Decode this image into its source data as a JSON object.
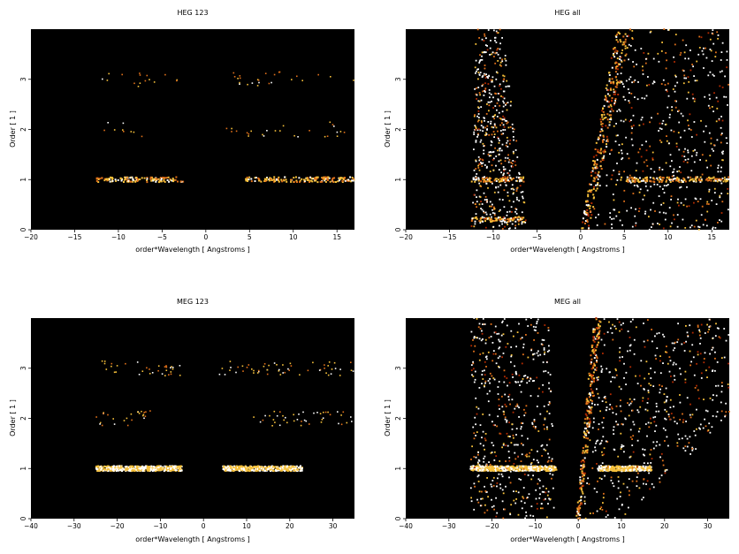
{
  "figure": {
    "background": "#ffffff"
  },
  "colors": {
    "plot_background": "#000000",
    "colormap": [
      "#000000",
      "#5a0000",
      "#b22a00",
      "#e0701a",
      "#f6c03a",
      "#ffffff"
    ]
  },
  "chart_data": [
    {
      "type": "heatmap",
      "title": "HEG 123",
      "xlabel": "order*Wavelength [ Angstroms ]",
      "ylabel": "Order [ 1 ]",
      "xlim": [
        -20,
        17
      ],
      "ylim": [
        0,
        4
      ],
      "xticks": [
        -20,
        -15,
        -10,
        -5,
        0,
        5,
        10,
        15
      ],
      "yticks": [
        0,
        1,
        2,
        3
      ],
      "xtick_labels": [
        "−20",
        "−15",
        "−10",
        "−5",
        "0",
        "5",
        "10",
        "15"
      ],
      "ytick_labels": [
        "0",
        "1",
        "2",
        "3"
      ],
      "grid": false,
      "features": [
        {
          "kind": "band",
          "order": 1,
          "x_ranges": [
            [
              -12.5,
              -2.5
            ],
            [
              4.5,
              17
            ]
          ],
          "density": "high"
        },
        {
          "kind": "band",
          "order": 2,
          "x_ranges": [
            [
              -12,
              -7
            ],
            [
              2,
              17
            ]
          ],
          "density": "low"
        },
        {
          "kind": "band",
          "order": 3,
          "x_ranges": [
            [
              -12,
              -3
            ],
            [
              3,
              17
            ]
          ],
          "density": "low"
        }
      ]
    },
    {
      "type": "heatmap",
      "title": "HEG all",
      "xlabel": "order*Wavelength [ Angstroms ]",
      "ylabel": "Order [ 1 ]",
      "xlim": [
        -20,
        17
      ],
      "ylim": [
        0,
        4
      ],
      "xticks": [
        -20,
        -15,
        -10,
        -5,
        0,
        5,
        10,
        15
      ],
      "yticks": [
        0,
        1,
        2,
        3
      ],
      "xtick_labels": [
        "−20",
        "−15",
        "−10",
        "−5",
        "0",
        "5",
        "10",
        "15"
      ],
      "ytick_labels": [
        "0",
        "1",
        "2",
        "3"
      ],
      "grid": false,
      "features": [
        {
          "kind": "band",
          "order": 1,
          "x_ranges": [
            [
              -12.5,
              -6.5
            ],
            [
              4.5,
              17
            ]
          ],
          "density": "high"
        },
        {
          "kind": "band",
          "order": 0.2,
          "x_ranges": [
            [
              -12.5,
              -6.5
            ]
          ],
          "density": "high"
        },
        {
          "kind": "zero_order_streak",
          "from": [
            0.5,
            0
          ],
          "to": [
            5,
            4
          ],
          "intensity": "bright"
        },
        {
          "kind": "scatter_region",
          "polygon": [
            [
              -12.5,
              0
            ],
            [
              -6,
              0
            ],
            [
              -9,
              4
            ],
            [
              -12,
              4
            ]
          ],
          "density": "medium"
        },
        {
          "kind": "scatter_region",
          "polygon": [
            [
              1,
              0
            ],
            [
              5,
              4
            ],
            [
              17,
              4
            ],
            [
              17,
              0
            ]
          ],
          "density": "medium"
        }
      ]
    },
    {
      "type": "heatmap",
      "title": "MEG 123",
      "xlabel": "order*Wavelength [ Angstroms ]",
      "ylabel": "Order [ 1 ]",
      "xlim": [
        -40,
        35
      ],
      "ylim": [
        0,
        4
      ],
      "xticks": [
        -40,
        -30,
        -20,
        -10,
        0,
        10,
        20,
        30
      ],
      "yticks": [
        0,
        1,
        2,
        3
      ],
      "xtick_labels": [
        "−40",
        "−30",
        "−20",
        "−10",
        "0",
        "10",
        "20",
        "30"
      ],
      "ytick_labels": [
        "0",
        "1",
        "2",
        "3"
      ],
      "grid": false,
      "features": [
        {
          "kind": "band",
          "order": 1,
          "x_ranges": [
            [
              -25,
              -5
            ],
            [
              4.5,
              23
            ]
          ],
          "density": "very_high"
        },
        {
          "kind": "band",
          "order": 2,
          "x_ranges": [
            [
              -25,
              -10
            ],
            [
              10,
              35
            ]
          ],
          "density": "low"
        },
        {
          "kind": "band",
          "order": 3,
          "x_ranges": [
            [
              -25,
              -5
            ],
            [
              3,
              35
            ]
          ],
          "density": "low"
        }
      ]
    },
    {
      "type": "heatmap",
      "title": "MEG all",
      "xlabel": "order*Wavelength [ Angstroms ]",
      "ylabel": "Order [ 1 ]",
      "xlim": [
        -40,
        35
      ],
      "ylim": [
        0,
        4
      ],
      "xticks": [
        -40,
        -30,
        -20,
        -10,
        0,
        10,
        20,
        30
      ],
      "yticks": [
        0,
        1,
        2,
        3
      ],
      "xtick_labels": [
        "−40",
        "−30",
        "−20",
        "−10",
        "0",
        "10",
        "20",
        "30"
      ],
      "ytick_labels": [
        "0",
        "1",
        "2",
        "3"
      ],
      "grid": false,
      "features": [
        {
          "kind": "band",
          "order": 1,
          "x_ranges": [
            [
              -25,
              -5
            ],
            [
              4.5,
              17
            ]
          ],
          "density": "very_high"
        },
        {
          "kind": "zero_order_streak",
          "from": [
            0,
            0
          ],
          "to": [
            4.5,
            4
          ],
          "intensity": "bright"
        },
        {
          "kind": "scatter_region",
          "polygon": [
            [
              -25,
              0
            ],
            [
              -5,
              0
            ],
            [
              -7,
              4
            ],
            [
              -25,
              4
            ]
          ],
          "density": "medium"
        },
        {
          "kind": "scatter_region",
          "polygon": [
            [
              1,
              0
            ],
            [
              10,
              0
            ],
            [
              35,
              2
            ],
            [
              35,
              4
            ],
            [
              5,
              4
            ]
          ],
          "density": "medium"
        }
      ]
    }
  ]
}
